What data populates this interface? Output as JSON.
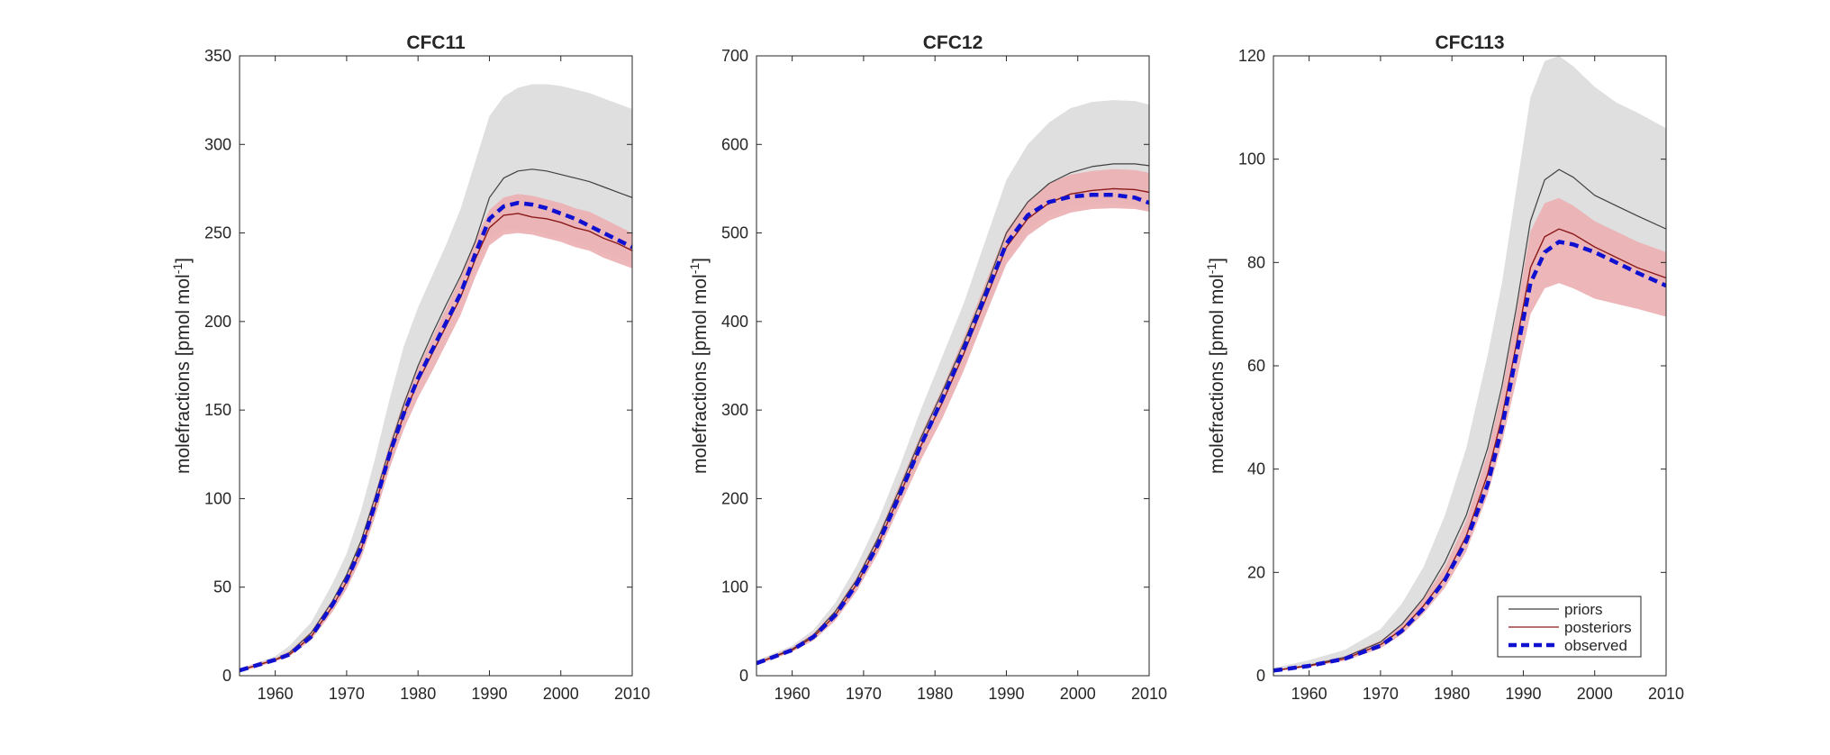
{
  "legend": {
    "placement": "bottom-right",
    "entries": [
      {
        "label": "priors",
        "color": "#404040",
        "style": "solid-thin"
      },
      {
        "label": "posteriors",
        "color": "#8b1a1a",
        "style": "solid-thin"
      },
      {
        "label": "observed",
        "color": "#1010d0",
        "style": "dashed-thick"
      }
    ]
  },
  "colors": {
    "prior_band": "#dcdcdc",
    "posterior_band": "#ecb0b3",
    "prior_line": "#404040",
    "posterior_line": "#8b1a1a",
    "observed_line": "#1010d0"
  },
  "chart_data": [
    {
      "type": "line",
      "title": "CFC11",
      "ylabel_main": "molefractions [pmol mol",
      "ylabel_sup": "-1",
      "ylabel_end": "]",
      "xlim": [
        1955,
        2010
      ],
      "ylim": [
        0,
        350
      ],
      "xticks": [
        1960,
        1970,
        1980,
        1990,
        2000,
        2010
      ],
      "yticks": [
        0,
        50,
        100,
        150,
        200,
        250,
        300,
        350
      ],
      "grid": false,
      "x": [
        1955,
        1960,
        1962,
        1965,
        1968,
        1970,
        1972,
        1974,
        1976,
        1978,
        1980,
        1982,
        1984,
        1986,
        1988,
        1990,
        1992,
        1994,
        1996,
        1998,
        2000,
        2002,
        2004,
        2006,
        2008,
        2010
      ],
      "series": [
        {
          "name": "priors",
          "role": "prior_line",
          "values": [
            3,
            9,
            13,
            24,
            42,
            57,
            76,
            101,
            128,
            153,
            175,
            193,
            210,
            226,
            245,
            270,
            281,
            285,
            286,
            285,
            283,
            281,
            279,
            276,
            273,
            270
          ]
        },
        {
          "name": "prior_lower",
          "role": "prior_band_lower",
          "values": [
            2,
            8,
            11,
            21,
            37,
            50,
            67,
            90,
            118,
            143,
            165,
            183,
            199,
            213,
            230,
            246,
            252,
            252,
            251,
            249,
            247,
            245,
            242,
            239,
            236,
            233
          ]
        },
        {
          "name": "prior_upper",
          "role": "prior_band_upper",
          "values": [
            4,
            11,
            17,
            30,
            52,
            69,
            93,
            123,
            156,
            186,
            208,
            226,
            244,
            264,
            290,
            316,
            327,
            332,
            334,
            334,
            333,
            331,
            329,
            326,
            323,
            320
          ]
        },
        {
          "name": "posteriors",
          "role": "posterior_line",
          "values": [
            3,
            9,
            12,
            22,
            39,
            53,
            71,
            96,
            124,
            147,
            166,
            182,
            198,
            214,
            235,
            253,
            260,
            261,
            259,
            258,
            256,
            253,
            251,
            247,
            244,
            240
          ]
        },
        {
          "name": "post_lower",
          "role": "posterior_band_lower",
          "values": [
            2,
            8,
            11,
            20,
            36,
            49,
            66,
            90,
            117,
            139,
            157,
            172,
            188,
            204,
            225,
            243,
            249,
            250,
            249,
            247,
            245,
            242,
            240,
            236,
            233,
            230
          ]
        },
        {
          "name": "post_upper",
          "role": "posterior_band_upper",
          "values": [
            4,
            10,
            14,
            25,
            43,
            58,
            77,
            103,
            131,
            155,
            174,
            191,
            208,
            225,
            246,
            263,
            270,
            272,
            271,
            269,
            267,
            264,
            262,
            258,
            254,
            250
          ]
        },
        {
          "name": "observed",
          "role": "observed_line",
          "values": [
            3,
            9,
            12,
            22,
            40,
            54,
            72,
            97,
            125,
            148,
            168,
            184,
            200,
            216,
            238,
            258,
            265,
            267,
            266,
            264,
            261,
            258,
            254,
            250,
            246,
            242
          ]
        }
      ]
    },
    {
      "type": "line",
      "title": "CFC12",
      "ylabel_main": "molefractions [pmol mol",
      "ylabel_sup": "-1",
      "ylabel_end": "]",
      "xlim": [
        1955,
        2010
      ],
      "ylim": [
        0,
        700
      ],
      "xticks": [
        1960,
        1970,
        1980,
        1990,
        2000,
        2010
      ],
      "yticks": [
        0,
        100,
        200,
        300,
        400,
        500,
        600,
        700
      ],
      "grid": false,
      "x": [
        1955,
        1960,
        1963,
        1966,
        1969,
        1972,
        1975,
        1978,
        1981,
        1984,
        1987,
        1990,
        1993,
        1996,
        1999,
        2002,
        2005,
        2008,
        2010
      ],
      "series": [
        {
          "name": "priors",
          "role": "prior_line",
          "values": [
            14,
            30,
            46,
            72,
            108,
            155,
            210,
            268,
            320,
            375,
            435,
            500,
            535,
            556,
            568,
            575,
            578,
            578,
            576
          ]
        },
        {
          "name": "prior_lower",
          "role": "prior_band_lower",
          "values": [
            12,
            27,
            40,
            63,
            97,
            141,
            196,
            252,
            300,
            350,
            408,
            470,
            503,
            520,
            530,
            533,
            533,
            531,
            528
          ]
        },
        {
          "name": "prior_upper",
          "role": "prior_band_upper",
          "values": [
            17,
            34,
            52,
            82,
            124,
            175,
            235,
            300,
            360,
            420,
            490,
            560,
            600,
            625,
            641,
            648,
            650,
            649,
            645
          ]
        },
        {
          "name": "posteriors",
          "role": "posterior_line",
          "values": [
            14,
            29,
            44,
            68,
            103,
            148,
            203,
            259,
            308,
            363,
            423,
            484,
            516,
            534,
            544,
            548,
            550,
            549,
            546
          ]
        },
        {
          "name": "post_lower",
          "role": "posterior_band_lower",
          "values": [
            12,
            27,
            40,
            62,
            95,
            138,
            190,
            243,
            290,
            344,
            405,
            465,
            497,
            514,
            523,
            527,
            528,
            527,
            524
          ]
        },
        {
          "name": "post_upper",
          "role": "posterior_band_upper",
          "values": [
            16,
            32,
            48,
            74,
            111,
            158,
            215,
            272,
            324,
            381,
            442,
            503,
            536,
            556,
            566,
            570,
            572,
            571,
            568
          ]
        },
        {
          "name": "observed",
          "role": "observed_line",
          "values": [
            14,
            29,
            44,
            68,
            103,
            148,
            203,
            260,
            312,
            368,
            428,
            488,
            520,
            535,
            541,
            543,
            543,
            540,
            534
          ]
        }
      ]
    },
    {
      "type": "line",
      "title": "CFC113",
      "ylabel_main": "molefractions [pmol mol",
      "ylabel_sup": "-1",
      "ylabel_end": "]",
      "xlim": [
        1955,
        2010
      ],
      "ylim": [
        0,
        120
      ],
      "xticks": [
        1960,
        1970,
        1980,
        1990,
        2000,
        2010
      ],
      "yticks": [
        0,
        20,
        40,
        60,
        80,
        100,
        120
      ],
      "grid": false,
      "x": [
        1955,
        1960,
        1965,
        1970,
        1973,
        1976,
        1979,
        1982,
        1985,
        1987,
        1989,
        1991,
        1993,
        1995,
        1997,
        2000,
        2003,
        2006,
        2010
      ],
      "series": [
        {
          "name": "priors",
          "role": "prior_line",
          "values": [
            1,
            2,
            3.6,
            6.5,
            10,
            15,
            22,
            31,
            44,
            56,
            71,
            88,
            96,
            98,
            96.5,
            93,
            91,
            89,
            86.5
          ]
        },
        {
          "name": "prior_lower",
          "role": "prior_band_lower",
          "values": [
            0.8,
            1.7,
            3,
            5.5,
            8.5,
            13,
            19,
            27,
            40,
            51,
            65,
            80,
            86,
            87,
            85,
            82,
            80,
            78,
            76
          ]
        },
        {
          "name": "prior_upper",
          "role": "prior_band_upper",
          "values": [
            1.5,
            3,
            5,
            9,
            14,
            21,
            31,
            44,
            62,
            76,
            94,
            112,
            119,
            120,
            118,
            114,
            111,
            109,
            106
          ]
        },
        {
          "name": "posteriors",
          "role": "posterior_line",
          "values": [
            1,
            1.9,
            3.3,
            6,
            9,
            13.5,
            19,
            27,
            39,
            50,
            64,
            79,
            85,
            86.5,
            85.5,
            83,
            81,
            79,
            77
          ]
        },
        {
          "name": "post_lower",
          "role": "posterior_band_lower",
          "values": [
            0.8,
            1.7,
            2.9,
            5.3,
            8,
            12,
            17,
            24,
            35,
            45,
            57,
            70,
            75,
            76,
            75,
            73,
            72,
            71,
            69.5
          ]
        },
        {
          "name": "post_upper",
          "role": "posterior_band_upper",
          "values": [
            1.2,
            2.2,
            3.8,
            6.8,
            10,
            15,
            21,
            30,
            43,
            55,
            70,
            86,
            91.5,
            92.5,
            91,
            88,
            86,
            84,
            82
          ]
        },
        {
          "name": "observed",
          "role": "observed_line",
          "values": [
            1,
            1.9,
            3.3,
            5.8,
            8.7,
            13,
            18.5,
            26,
            37,
            48,
            62,
            76,
            82,
            84,
            83.5,
            82,
            80,
            78,
            75.5
          ]
        }
      ]
    }
  ]
}
